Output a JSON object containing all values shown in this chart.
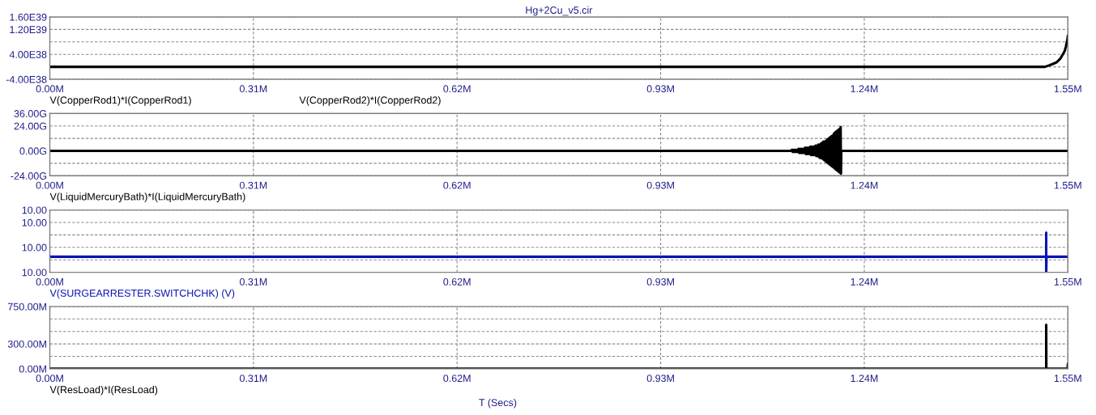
{
  "chart_data": [
    {
      "type": "line",
      "title": "Hg+2Cu_v5.cir",
      "xlim": [
        0,
        1.55
      ],
      "xticks": [
        {
          "value": 0,
          "label": "0.00M"
        },
        {
          "value": 0.31,
          "label": "0.31M"
        },
        {
          "value": 0.62,
          "label": "0.62M"
        },
        {
          "value": 0.93,
          "label": "0.93M"
        },
        {
          "value": 1.24,
          "label": "1.24M"
        },
        {
          "value": 1.55,
          "label": "1.55M"
        }
      ],
      "ylim": [
        -4e+38,
        1.6e+39
      ],
      "yticks": [
        {
          "value": 1.6e+39,
          "label": "1.60E39"
        },
        {
          "value": 1.2e+39,
          "label": "1.20E39"
        },
        {
          "value": 8e+38,
          "label": null
        },
        {
          "value": 4e+38,
          "label": "4.00E38"
        },
        {
          "value": 0,
          "label": null
        },
        {
          "value": -4e+38,
          "label": "-4.00E38"
        }
      ],
      "grid": true,
      "legend": "bottom",
      "line_style": "solid",
      "x": [
        0,
        1.505,
        1.515,
        1.522,
        1.528,
        1.533,
        1.538,
        1.541,
        1.545,
        1.547,
        1.549,
        1.55
      ],
      "series": [
        {
          "name": "V(CopperRod1)*I(CopperRod1)",
          "color": "#000000",
          "values": [
            0,
            0,
            0,
            5e+37,
            1e+38,
            1.5e+38,
            2.5e+38,
            3.5e+38,
            5e+38,
            6.5e+38,
            8.5e+38,
            1e+39
          ]
        },
        {
          "name": "V(CopperRod2)*I(CopperRod2)",
          "color": "#000000",
          "values": [
            null,
            null,
            null,
            null,
            null,
            null,
            null,
            null,
            null,
            null,
            null,
            null
          ]
        }
      ]
    },
    {
      "type": "line",
      "xlim": [
        0,
        1.55
      ],
      "xticks": [
        {
          "value": 0,
          "label": "0.00M"
        },
        {
          "value": 0.31,
          "label": "0.31M"
        },
        {
          "value": 0.62,
          "label": "0.62M"
        },
        {
          "value": 0.93,
          "label": "0.93M"
        },
        {
          "value": 1.24,
          "label": "1.24M"
        },
        {
          "value": 1.55,
          "label": "1.55M"
        }
      ],
      "ylim": [
        -24,
        36
      ],
      "yticks": [
        {
          "value": 36,
          "label": "36.00G"
        },
        {
          "value": 24,
          "label": "24.00G"
        },
        {
          "value": 12,
          "label": null
        },
        {
          "value": 0,
          "label": "0.00G"
        },
        {
          "value": -12,
          "label": null
        },
        {
          "value": -24,
          "label": "-24.00G"
        }
      ],
      "grid": true,
      "legend": "bottom",
      "line_style": "solid",
      "series": [
        {
          "name": "V(LiquidMercuryBath)*I(LiquidMercuryBath)",
          "color": "#000000",
          "x": [
            0,
            1.128,
            1.13,
            1.131,
            1.132,
            1.133,
            1.134,
            1.135,
            1.136,
            1.137,
            1.138,
            1.139,
            1.14,
            1.141,
            1.142,
            1.143,
            1.144,
            1.145,
            1.146,
            1.147,
            1.148,
            1.149,
            1.15,
            1.151,
            1.152,
            1.153,
            1.154,
            1.155,
            1.156,
            1.157,
            1.158,
            1.159,
            1.16,
            1.161,
            1.162,
            1.163,
            1.164,
            1.165,
            1.166,
            1.167,
            1.168,
            1.169,
            1.17,
            1.171,
            1.172,
            1.173,
            1.174,
            1.175,
            1.176,
            1.177,
            1.178,
            1.179,
            1.18,
            1.181,
            1.182,
            1.183,
            1.184,
            1.185,
            1.186,
            1.187,
            1.188,
            1.189,
            1.19,
            1.191,
            1.192,
            1.193,
            1.194,
            1.195,
            1.196,
            1.197,
            1.198,
            1.199,
            1.2,
            1.201,
            1.202,
            1.203,
            1.204,
            1.2045,
            1.205,
            1.55
          ],
          "values": [
            0,
            0,
            1,
            -1,
            1,
            -1,
            1,
            -1,
            1,
            -1,
            1,
            -1,
            2,
            -2,
            2,
            -2,
            2,
            -2,
            2,
            -2,
            2,
            -2,
            3,
            -3,
            3,
            -3,
            3,
            -3,
            3,
            -3,
            4,
            -4,
            4,
            -4,
            4,
            -4,
            4,
            -4,
            5,
            -5,
            5,
            -5,
            6,
            -6,
            6,
            -7,
            7,
            -7,
            8,
            -8,
            9,
            -9,
            9,
            -10,
            10,
            -11,
            11,
            -12,
            12,
            -13,
            13,
            -14,
            14,
            -15,
            15,
            -16,
            17,
            -17,
            18,
            -18,
            19,
            -19,
            20,
            -20,
            21,
            -21,
            23,
            -22,
            0,
            0
          ]
        }
      ]
    },
    {
      "type": "line",
      "xlim": [
        0,
        1.55
      ],
      "xticks": [
        {
          "value": 0,
          "label": "0.00M"
        },
        {
          "value": 0.31,
          "label": "0.31M"
        },
        {
          "value": 0.62,
          "label": "0.62M"
        },
        {
          "value": 0.93,
          "label": "0.93M"
        },
        {
          "value": 1.24,
          "label": "1.24M"
        },
        {
          "value": 1.55,
          "label": "1.55M"
        }
      ],
      "ylim": [
        9.996,
        10.004
      ],
      "yticks": [
        {
          "value": 10.004,
          "label": "10.00"
        },
        {
          "value": 10.0024,
          "label": "10.00"
        },
        {
          "value": 10.0008,
          "label": null
        },
        {
          "value": 9.9992,
          "label": "10.00"
        },
        {
          "value": 9.9976,
          "label": null
        },
        {
          "value": 9.996,
          "label": "10.00"
        }
      ],
      "grid": true,
      "legend": "bottom",
      "line_style": "solid",
      "series": [
        {
          "name": "V(SURGEARRESTER.SWITCHCHK) (V)",
          "color": "#0a14b4",
          "x": [
            0,
            1.517,
            1.517,
            1.517,
            1.5175,
            1.55
          ],
          "values": [
            9.998,
            9.998,
            10.0011,
            9.996,
            9.998,
            9.998
          ]
        }
      ]
    },
    {
      "type": "line",
      "xlabel": "T (Secs)",
      "xlim": [
        0,
        1.55
      ],
      "xticks": [
        {
          "value": 0,
          "label": "0.00M"
        },
        {
          "value": 0.31,
          "label": "0.31M"
        },
        {
          "value": 0.62,
          "label": "0.62M"
        },
        {
          "value": 0.93,
          "label": "0.93M"
        },
        {
          "value": 1.24,
          "label": "1.24M"
        },
        {
          "value": 1.55,
          "label": "1.55M"
        }
      ],
      "ylim": [
        0,
        750
      ],
      "yticks": [
        {
          "value": 750,
          "label": "750.00M"
        },
        {
          "value": 600,
          "label": null
        },
        {
          "value": 450,
          "label": null
        },
        {
          "value": 300,
          "label": "300.00M"
        },
        {
          "value": 150,
          "label": null
        },
        {
          "value": 0,
          "label": "0.00M"
        }
      ],
      "grid": true,
      "legend": "bottom",
      "line_style": "solid",
      "series": [
        {
          "name": "V(ResLoad)*I(ResLoad)",
          "color": "#000000",
          "x": [
            0,
            1.517,
            1.517,
            1.5172,
            1.5495,
            1.55
          ],
          "values": [
            0,
            0,
            530,
            0,
            0,
            60
          ]
        }
      ]
    }
  ]
}
